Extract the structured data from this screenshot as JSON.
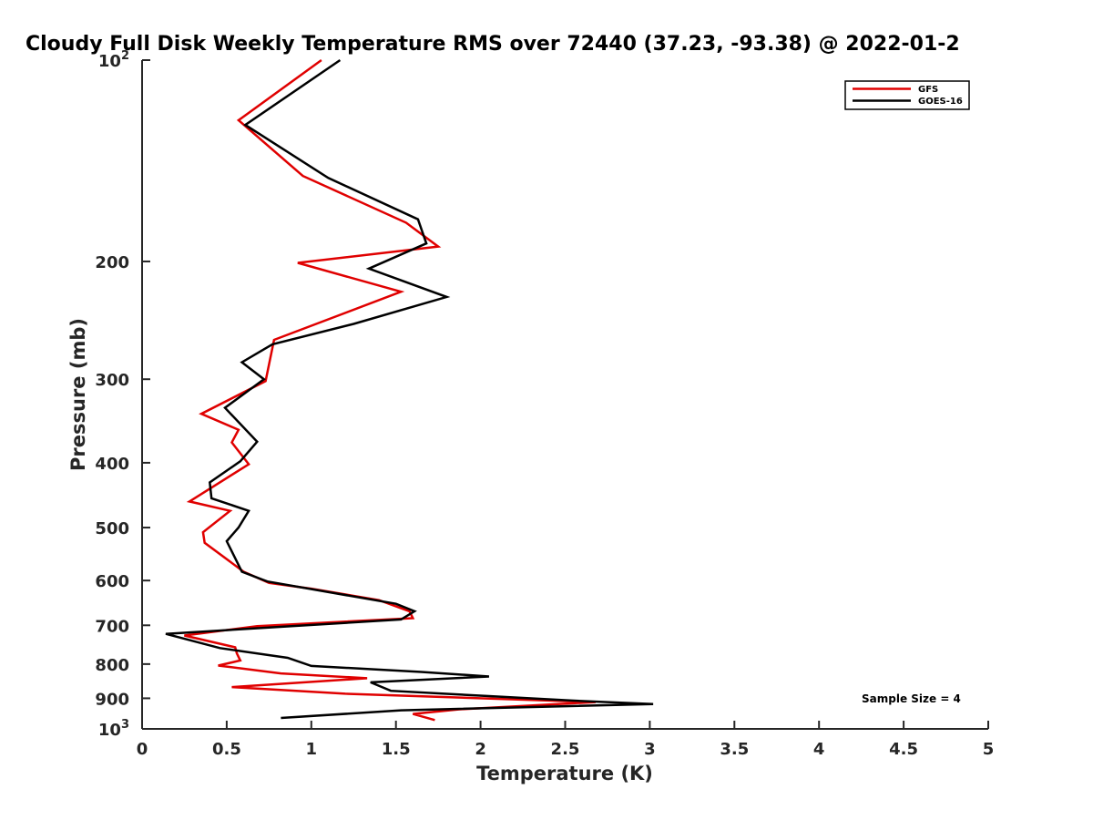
{
  "chart_data": {
    "type": "line",
    "title": "Cloudy Full Disk Weekly Temperature RMS over 72440 (37.23, -93.38) @ 2022-01-2",
    "xlabel": "Temperature (K)",
    "ylabel": "Pressure (mb)",
    "xlim": [
      0,
      5
    ],
    "ylim": [
      100,
      1000
    ],
    "y_scale": "log",
    "y_reversed": true,
    "grid": false,
    "legend_position": "top-right",
    "x_ticks": [
      "0",
      "0.5",
      "1",
      "1.5",
      "2",
      "2.5",
      "3",
      "3.5",
      "4",
      "4.5",
      "5"
    ],
    "y_ticks": [
      {
        "value": 100,
        "base": "10",
        "exp": "2"
      },
      {
        "value": 200,
        "label": "200"
      },
      {
        "value": 300,
        "label": "300"
      },
      {
        "value": 400,
        "label": "400"
      },
      {
        "value": 500,
        "label": "500"
      },
      {
        "value": 600,
        "label": "600"
      },
      {
        "value": 700,
        "label": "700"
      },
      {
        "value": 800,
        "label": "800"
      },
      {
        "value": 900,
        "label": "900"
      },
      {
        "value": 1000,
        "base": "10",
        "exp": "3"
      }
    ],
    "annotation": "Sample Size = 4",
    "series": [
      {
        "name": "GFS",
        "color": "#e00000",
        "points": [
          [
            1.06,
            100
          ],
          [
            0.57,
            123
          ],
          [
            0.95,
            149
          ],
          [
            1.56,
            175
          ],
          [
            1.75,
            190
          ],
          [
            0.92,
            201
          ],
          [
            1.53,
            222
          ],
          [
            0.78,
            262
          ],
          [
            0.73,
            302
          ],
          [
            0.35,
            338
          ],
          [
            0.57,
            357
          ],
          [
            0.53,
            373
          ],
          [
            0.63,
            402
          ],
          [
            0.28,
            457
          ],
          [
            0.52,
            472
          ],
          [
            0.36,
            508
          ],
          [
            0.37,
            527
          ],
          [
            0.6,
            582
          ],
          [
            0.75,
            605
          ],
          [
            1.0,
            617
          ],
          [
            1.4,
            642
          ],
          [
            1.58,
            667
          ],
          [
            1.6,
            683
          ],
          [
            0.68,
            702
          ],
          [
            0.25,
            725
          ],
          [
            0.55,
            755
          ],
          [
            0.56,
            771
          ],
          [
            0.58,
            790
          ],
          [
            0.45,
            804
          ],
          [
            0.82,
            826
          ],
          [
            1.33,
            840
          ],
          [
            0.53,
            866
          ],
          [
            1.2,
            886
          ],
          [
            2.68,
            912
          ],
          [
            1.87,
            935
          ],
          [
            1.6,
            950
          ],
          [
            1.73,
            970
          ]
        ]
      },
      {
        "name": "GOES-16",
        "color": "#000000",
        "points": [
          [
            1.17,
            100
          ],
          [
            0.61,
            125
          ],
          [
            1.1,
            150
          ],
          [
            1.63,
            173
          ],
          [
            1.68,
            188
          ],
          [
            1.34,
            205
          ],
          [
            1.8,
            226
          ],
          [
            1.25,
            248
          ],
          [
            0.77,
            266
          ],
          [
            0.59,
            283
          ],
          [
            0.72,
            300
          ],
          [
            0.49,
            331
          ],
          [
            0.68,
            372
          ],
          [
            0.58,
            398
          ],
          [
            0.4,
            428
          ],
          [
            0.41,
            452
          ],
          [
            0.63,
            472
          ],
          [
            0.57,
            500
          ],
          [
            0.5,
            524
          ],
          [
            0.59,
            582
          ],
          [
            0.74,
            602
          ],
          [
            1.5,
            650
          ],
          [
            1.61,
            667
          ],
          [
            1.53,
            686
          ],
          [
            0.14,
            721
          ],
          [
            0.46,
            757
          ],
          [
            0.86,
            783
          ],
          [
            1.0,
            805
          ],
          [
            1.65,
            822
          ],
          [
            2.05,
            835
          ],
          [
            1.35,
            852
          ],
          [
            1.47,
            877
          ],
          [
            2.54,
            907
          ],
          [
            3.02,
            918
          ],
          [
            1.53,
            938
          ],
          [
            0.82,
            963
          ]
        ]
      }
    ]
  }
}
